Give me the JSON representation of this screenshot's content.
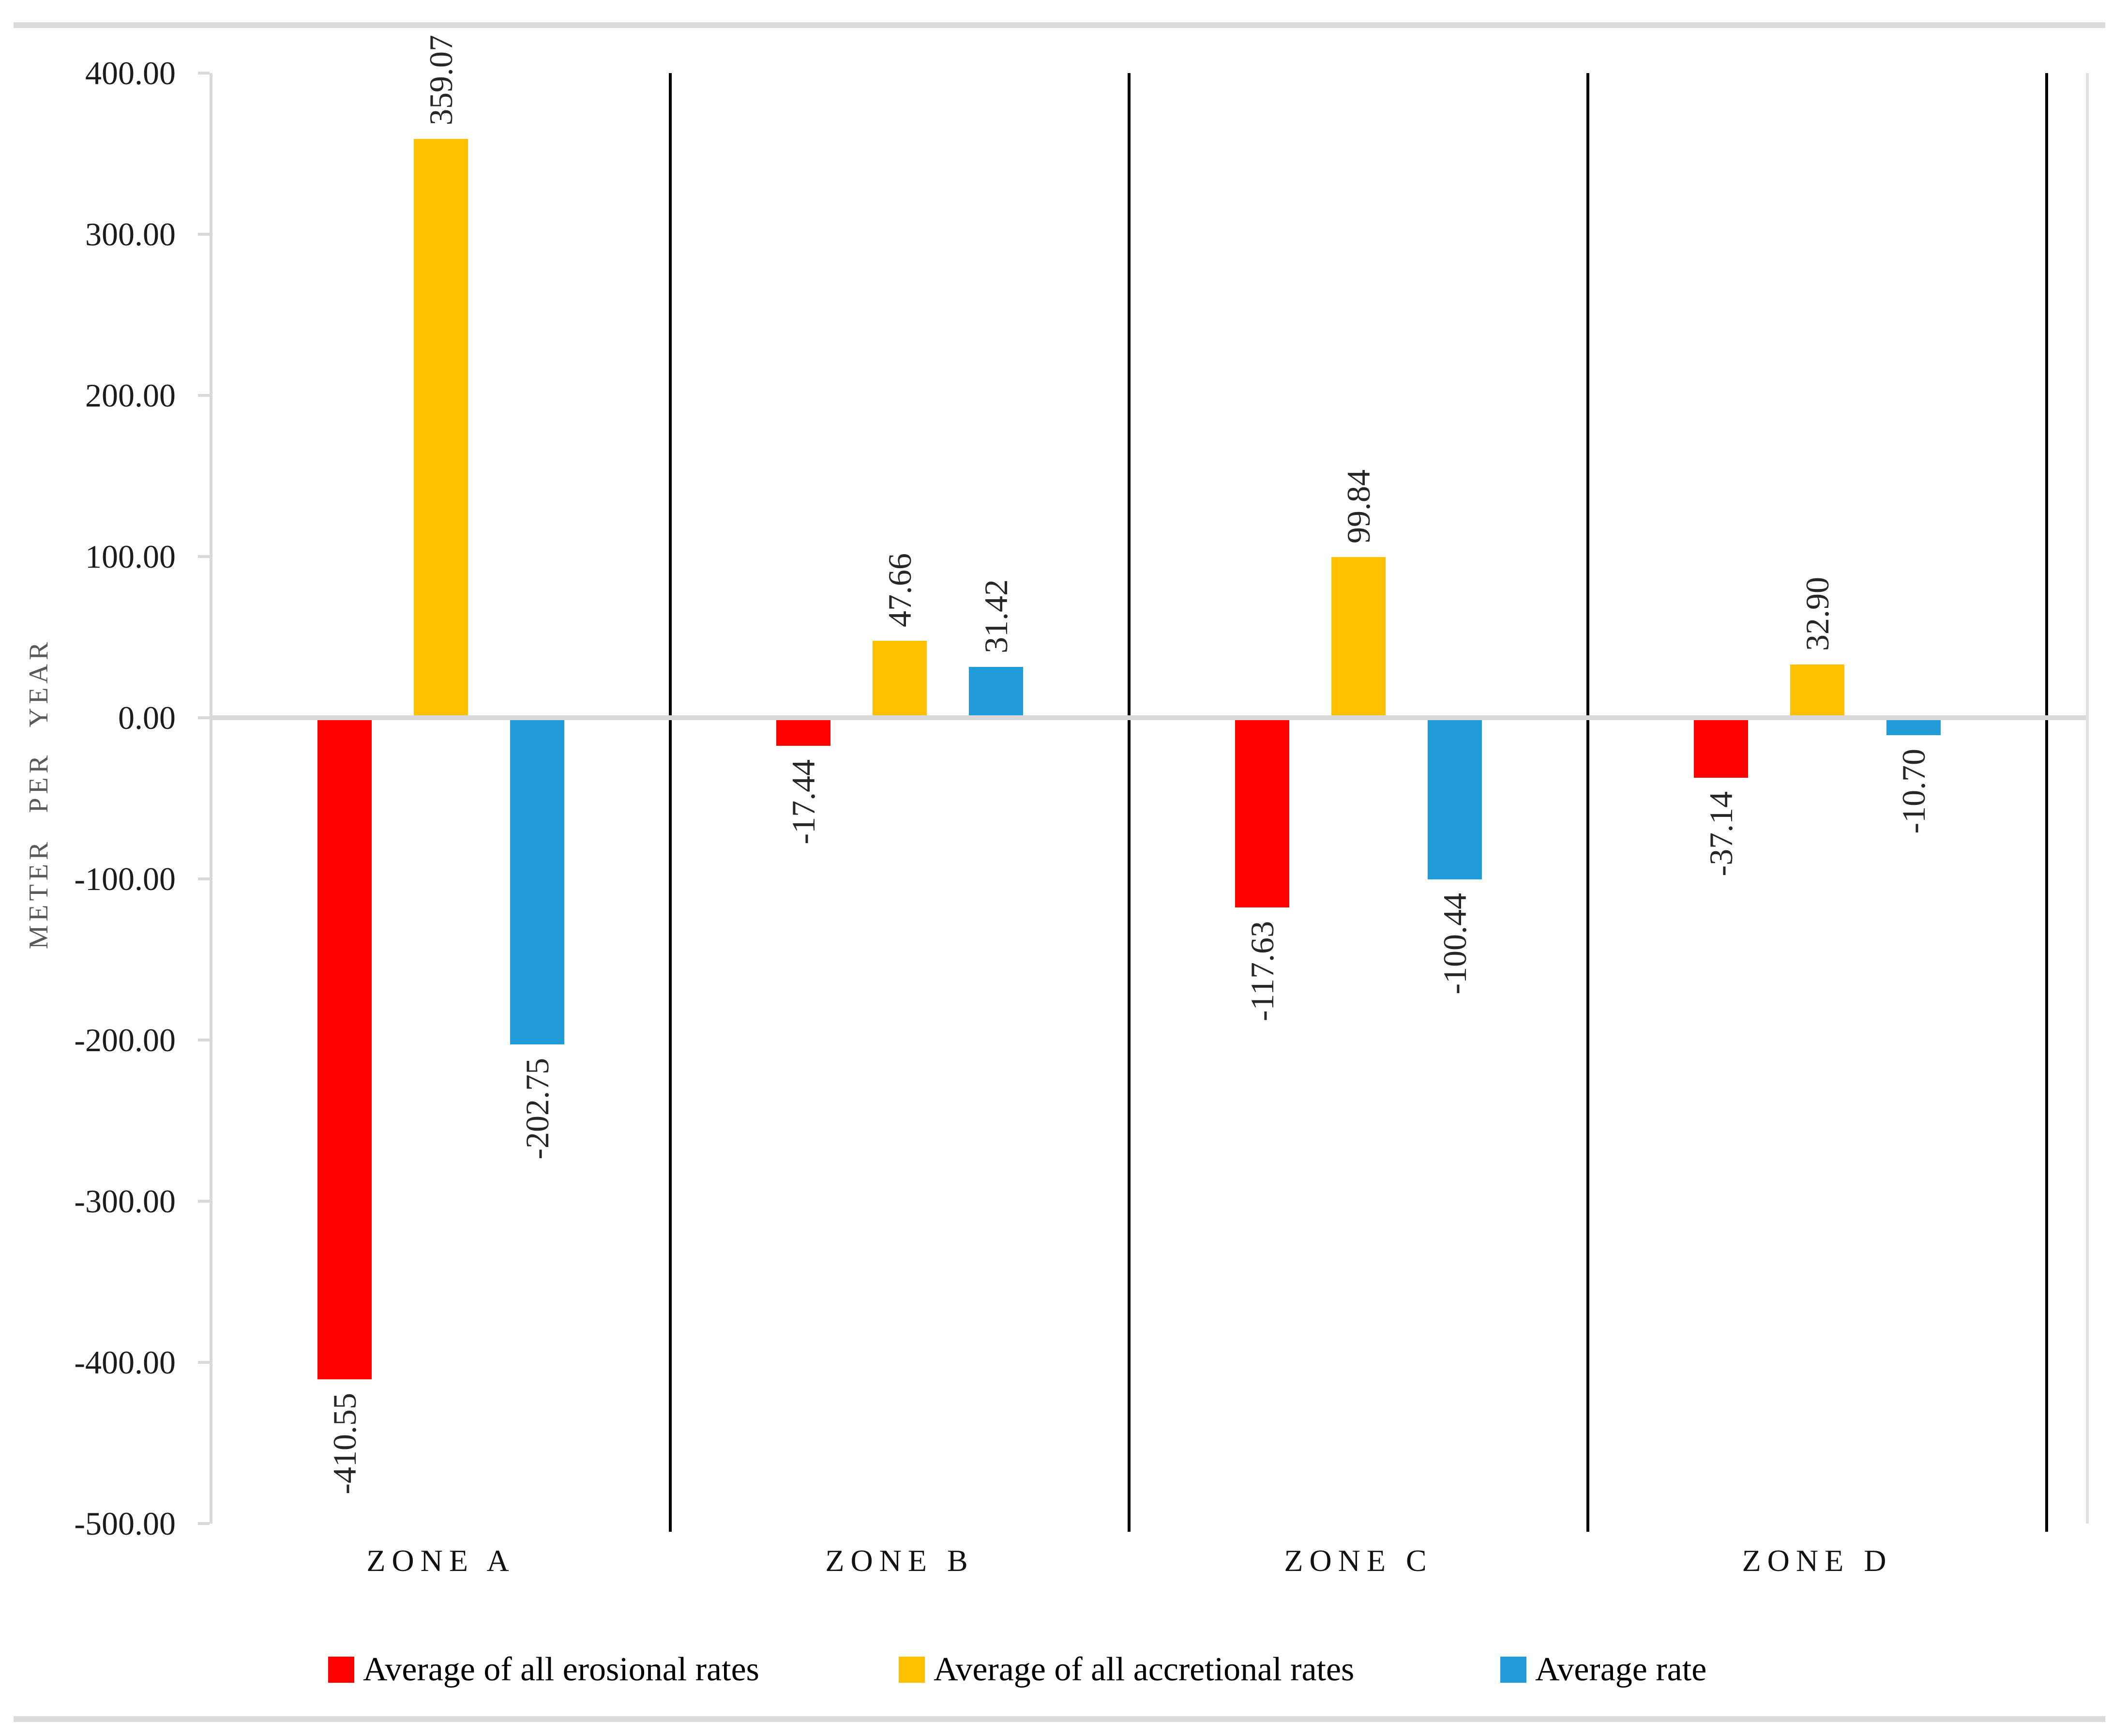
{
  "chart_data": {
    "type": "bar",
    "categories": [
      "ZONE A",
      "ZONE B",
      "ZONE C",
      "ZONE D"
    ],
    "series": [
      {
        "name": "Average of all erosional rates",
        "color": "#FF0000",
        "values": [
          -410.55,
          -17.44,
          -117.63,
          -37.14
        ]
      },
      {
        "name": "Average of all accretional rates",
        "color": "#FFC000",
        "values": [
          359.07,
          47.66,
          99.84,
          32.9
        ]
      },
      {
        "name": "Average rate",
        "color": "#229CD9",
        "values": [
          -202.75,
          31.42,
          -100.44,
          -10.7
        ]
      }
    ],
    "xlabel": "",
    "ylabel": "METER PER YEAR",
    "ylim": [
      -500,
      400
    ],
    "ytick_values": [
      400,
      300,
      200,
      100,
      0,
      -100,
      -200,
      -300,
      -400,
      -500
    ],
    "ytick_labels": [
      "400.00",
      "300.00",
      "200.00",
      "100.00",
      "0.00",
      "-100.00",
      "-200.00",
      "-300.00",
      "-400.00",
      "-500.00"
    ],
    "data_label_decimals": 2,
    "data_label_orientation": "rotated-bottom-to-top",
    "legend_position": "bottom",
    "grid": {
      "horizontal_gridlines": false,
      "zero_line": true,
      "category_separator_lines": true
    },
    "colors": {
      "gridline": "#D9D9D9",
      "separator": "#000000",
      "tick_text": "#1C1C1C",
      "data_label_text": "#262626",
      "axis_title_text": "#595959",
      "frame_border": "#DBDBDB"
    }
  }
}
